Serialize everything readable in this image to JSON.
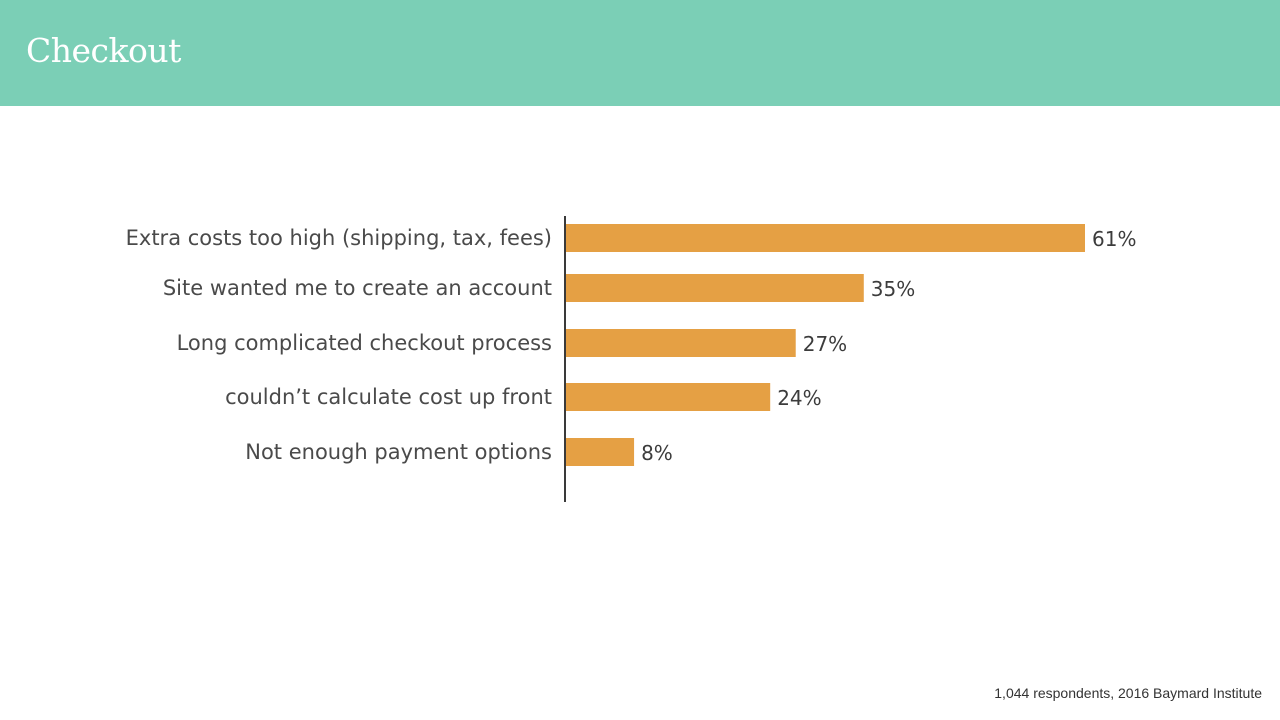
{
  "header": {
    "title": "Checkout"
  },
  "chart_data": {
    "type": "bar",
    "orientation": "horizontal",
    "categories": [
      "Extra costs too high (shipping, tax, fees)",
      "Site wanted me to create an account",
      "Long complicated checkout process",
      "couldn’t calculate cost up front",
      "Not enough payment options"
    ],
    "values": [
      61,
      35,
      27,
      24,
      8
    ],
    "value_labels": [
      "61%",
      "35%",
      "27%",
      "24%",
      "8%"
    ],
    "unit": "%",
    "bar_color": "#e5a044",
    "xlim": [
      0,
      100
    ],
    "grid": false
  },
  "footnote": "1,044 respondents, 2016 Baymard Institute"
}
